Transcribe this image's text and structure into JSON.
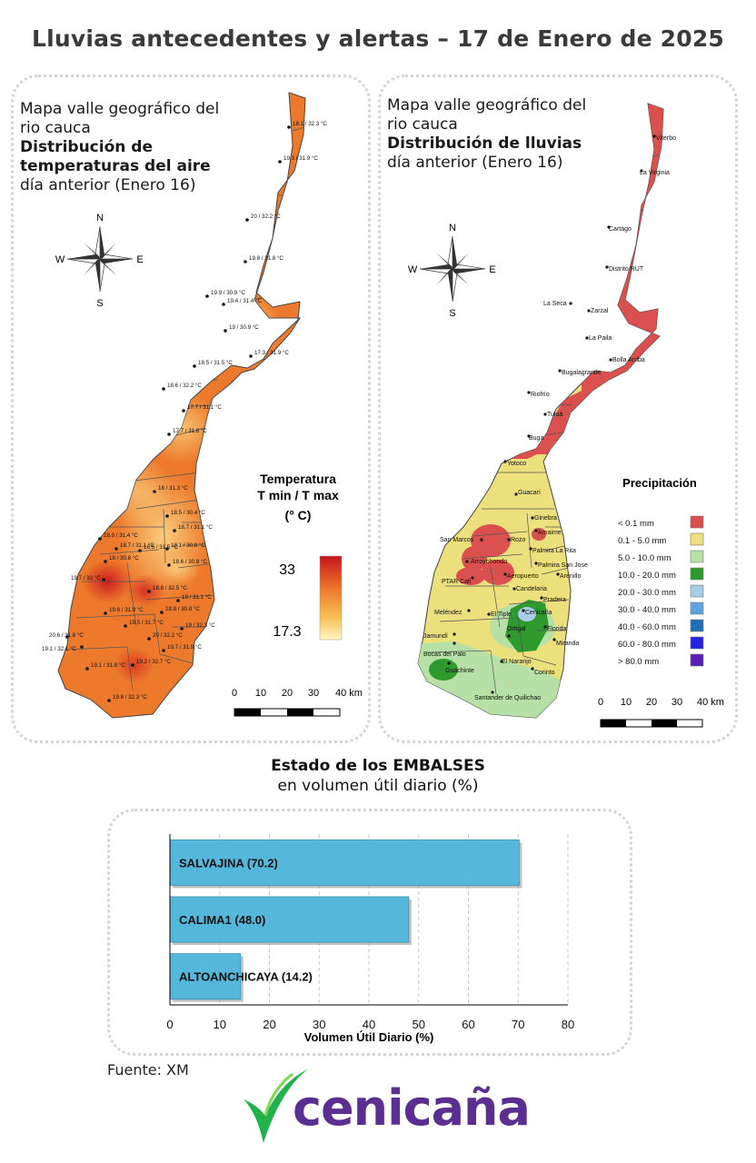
{
  "title": "Lluvias antecedentes y alertas – 17 de Enero de 2025",
  "compass": {
    "n": "N",
    "s": "S",
    "e": "E",
    "w": "W"
  },
  "temp_panel": {
    "line1": "Mapa valle geográfico del",
    "line2": "rio cauca",
    "line3": "Distribución de",
    "line4": "temperaturas del aire",
    "line5": "día anterior (Enero 16)",
    "legend_title1": "Temperatura",
    "legend_title2": "T min / T max",
    "legend_title3": "(° C)",
    "legend_max": "33",
    "legend_min": "17.3",
    "scale": [
      "0",
      "10",
      "20",
      "30",
      "40 km"
    ],
    "stations": [
      "18.1 / 32.3 °C",
      "19.3 / 31.9 °C",
      "20 / 32.2 °C",
      "19.8 / 31.8 °C",
      "19.9 / 30.9 °C",
      "19.4 / 31.4 °C",
      "19 / 30.9 °C",
      "17.3 / 31.9 °C",
      "18.5 / 31.5 °C",
      "18.6 / 32.2 °C",
      "17.7 / 31.1 °C",
      "17.7 / 31.8 °C",
      "18 / 31.3 °C",
      "18.5 / 30.4 °C",
      "18.7 / 31.1 °C",
      "18.9 / 31.4 °C",
      "18.7 / 31.1 °C",
      "18.1 / 30.8 °C",
      "18 / 30.8 °C",
      "18.5 / 31.5 °C",
      "18.6 / 30.8 °C",
      "19.7 / 33 °C",
      "18.8 / 32.5 °C",
      "19 / 31.1 °C",
      "19.6 / 31.9 °C",
      "18.8 / 30.8 °C",
      "19.5 / 31.7 °C",
      "20.6 / 31.6 °C",
      "19.1 / 32.1 °C",
      "20 / 32.2 °C",
      "19 / 32.3 °C",
      "19.7 / 31.9 °C",
      "19.1 / 31.8 °C",
      "19.2 / 32.7 °C",
      "19.8 / 32.3 °C"
    ]
  },
  "rain_panel": {
    "line1": "Mapa valle geográfico del",
    "line2": "rio cauca",
    "line3": "Distribución de lluvias",
    "line4": "día anterior (Enero 16)",
    "legend_title": "Precipitación",
    "legend": [
      {
        "label": "< 0.1 mm",
        "color": "#d9504f"
      },
      {
        "label": "0.1 - 5.0 mm",
        "color": "#ece07d"
      },
      {
        "label": "5.0 - 10.0 mm",
        "color": "#b6e0a6"
      },
      {
        "label": "10.0 - 20.0 mm",
        "color": "#2e9a2e"
      },
      {
        "label": "20.0 - 30.0 mm",
        "color": "#a9cde6"
      },
      {
        "label": "30.0 - 40.0 mm",
        "color": "#5fa3dc"
      },
      {
        "label": "40.0 - 60.0 mm",
        "color": "#1f6fb5"
      },
      {
        "label": "60.0 - 80.0 mm",
        "color": "#2323e6"
      },
      {
        "label": "> 80.0 mm",
        "color": "#5a1fb8"
      }
    ],
    "scale": [
      "0",
      "10",
      "20",
      "30",
      "40 km"
    ],
    "stations": [
      "Viterbo",
      "La Virginia",
      "Cartago",
      "Distrito RUT",
      "La Seca",
      "Zarzal",
      "La Paila",
      "Bolla Arriba",
      "Bugalagrande",
      "Riofrío",
      "Tuluá",
      "Buga",
      "Yotoco",
      "Guacarí",
      "Ginebra",
      "Amaime",
      "San Marcos",
      "Rozo",
      "Palmira La Rita",
      "Arroyohondo",
      "Palmira San Jose",
      "Aeropuerto",
      "Arenillo",
      "PTAR Cali",
      "Candelaria",
      "Pradera",
      "Cenicaña",
      "Meléndez",
      "El Tiple",
      "Florida",
      "Jamundí",
      "Bocas del Palo",
      "Ortigal",
      "Miranda",
      "Guachinte",
      "El Naranjo",
      "Corinto",
      "Santander de Quilichao"
    ]
  },
  "reservoirs": {
    "title": "Estado de los EMBALSES",
    "subtitle": "en volumen útil diario (%)"
  },
  "chart_data": {
    "type": "bar",
    "orientation": "horizontal",
    "categories": [
      "SALVAJINA (70.2)",
      "CALIMA1 (48.0)",
      "ALTOANCHICAYA (14.2)"
    ],
    "values": [
      70.2,
      48.0,
      14.2
    ],
    "xlabel": "Volumen Útil Diario (%)",
    "xlim": [
      0,
      80
    ],
    "xticks": [
      "0",
      "10",
      "20",
      "30",
      "40",
      "50",
      "60",
      "70",
      "80"
    ],
    "bar_color": "#55b8db",
    "grid": true
  },
  "source": "Fuente: XM",
  "logo_text": "cenicaña"
}
